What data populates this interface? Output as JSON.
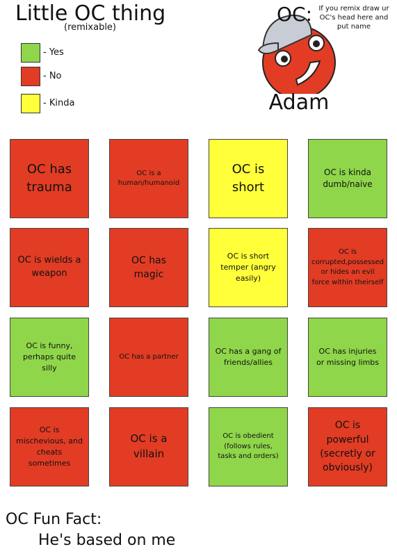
{
  "header": {
    "title": "Little OC thing",
    "subtitle": "(remixable)"
  },
  "legend": [
    {
      "label": "- Yes",
      "color": "#8fd64a"
    },
    {
      "label": "- No",
      "color": "#e23c24"
    },
    {
      "label": "- Kinda",
      "color": "#ffff3a"
    }
  ],
  "oc": {
    "heading": "OC:",
    "instruction": "If you remix draw ur OC's head here and put name",
    "name": "Adam"
  },
  "cells": [
    {
      "text": "OC has trauma",
      "color": "#e23c24"
    },
    {
      "text": "OC is a human/humanoid",
      "color": "#e23c24"
    },
    {
      "text": "OC is short",
      "color": "#ffff3a"
    },
    {
      "text": "OC is kinda dumb/naive",
      "color": "#8fd64a"
    },
    {
      "text": "OC is wields a weapon",
      "color": "#e23c24"
    },
    {
      "text": "OC has magic",
      "color": "#e23c24"
    },
    {
      "text": "OC is short temper (angry easily)",
      "color": "#ffff3a"
    },
    {
      "text": "OC is corrupted,possessed or hides an evil force within theirself",
      "color": "#e23c24"
    },
    {
      "text": "OC is funny, perhaps quite silly",
      "color": "#8fd64a"
    },
    {
      "text": "OC has a partner",
      "color": "#e23c24"
    },
    {
      "text": "OC has a gang of friends/allies",
      "color": "#8fd64a"
    },
    {
      "text": "OC has injuries or missing limbs",
      "color": "#8fd64a"
    },
    {
      "text": "OC is mischevious, and cheats sometimes",
      "color": "#e23c24"
    },
    {
      "text": "OC is a villain",
      "color": "#e23c24"
    },
    {
      "text": "OC is obedient (follows rules, tasks and orders)",
      "color": "#8fd64a"
    },
    {
      "text": "OC is powerful (secretly or obviously)",
      "color": "#e23c24"
    }
  ],
  "fun_fact": {
    "heading": "OC Fun Fact:",
    "text": "He's based on me"
  }
}
